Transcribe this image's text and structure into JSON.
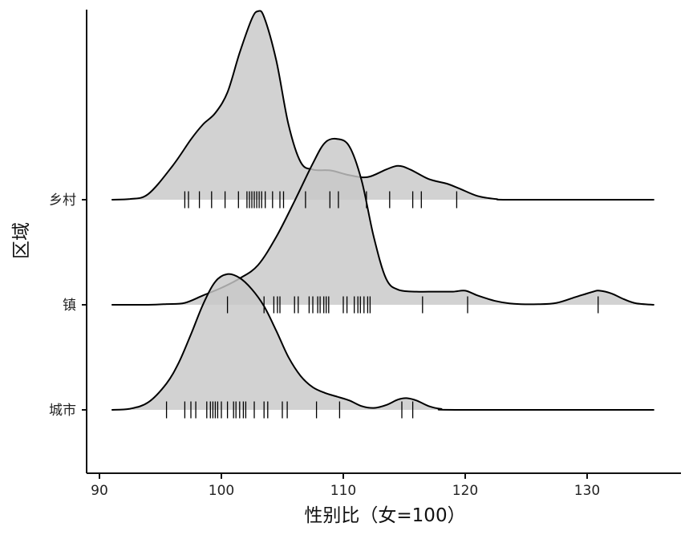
{
  "chart_data": {
    "type": "ridgeline",
    "xlabel": "性别比（女=100）",
    "ylabel": "区域",
    "xlim": [
      89,
      137
    ],
    "xticks": [
      90,
      100,
      110,
      120,
      130
    ],
    "grid": false,
    "legend": "none",
    "fill_color": "#c8c8c8",
    "line_color": "#000000",
    "categories": [
      "乡村",
      "镇",
      "城市"
    ],
    "series": [
      {
        "name": "乡村",
        "density": [
          [
            91,
            0.0
          ],
          [
            92.5,
            0.004
          ],
          [
            94,
            0.03
          ],
          [
            96,
            0.18
          ],
          [
            97.5,
            0.32
          ],
          [
            98.5,
            0.4
          ],
          [
            99.5,
            0.46
          ],
          [
            100.5,
            0.57
          ],
          [
            101.5,
            0.78
          ],
          [
            102.5,
            0.96
          ],
          [
            103,
            1.0
          ],
          [
            103.5,
            0.97
          ],
          [
            104.5,
            0.74
          ],
          [
            105.5,
            0.4
          ],
          [
            106.5,
            0.2
          ],
          [
            107.5,
            0.16
          ],
          [
            109,
            0.155
          ],
          [
            110.5,
            0.13
          ],
          [
            112,
            0.12
          ],
          [
            113.5,
            0.16
          ],
          [
            114.5,
            0.18
          ],
          [
            115.5,
            0.16
          ],
          [
            117,
            0.11
          ],
          [
            118.5,
            0.085
          ],
          [
            119.5,
            0.06
          ],
          [
            121,
            0.02
          ],
          [
            122.5,
            0.004
          ],
          [
            124,
            0.0
          ],
          [
            135.5,
            0.0
          ]
        ],
        "rug": [
          97.0,
          97.3,
          98.2,
          99.2,
          100.3,
          101.4,
          102.1,
          102.3,
          102.5,
          102.7,
          102.9,
          103.1,
          103.3,
          103.6,
          104.2,
          104.8,
          105.1,
          106.9,
          108.9,
          109.6,
          111.9,
          113.8,
          115.7,
          116.4,
          119.3
        ]
      },
      {
        "name": "镇",
        "density": [
          [
            91,
            0.0
          ],
          [
            94,
            0.0
          ],
          [
            95.5,
            0.004
          ],
          [
            97,
            0.01
          ],
          [
            98.5,
            0.05
          ],
          [
            100,
            0.09
          ],
          [
            101.5,
            0.14
          ],
          [
            103,
            0.21
          ],
          [
            104.5,
            0.36
          ],
          [
            106,
            0.55
          ],
          [
            107.5,
            0.75
          ],
          [
            108.5,
            0.86
          ],
          [
            109.5,
            0.88
          ],
          [
            110.5,
            0.84
          ],
          [
            111.5,
            0.66
          ],
          [
            112.5,
            0.36
          ],
          [
            113.5,
            0.14
          ],
          [
            114.5,
            0.08
          ],
          [
            116,
            0.07
          ],
          [
            117.5,
            0.07
          ],
          [
            119,
            0.07
          ],
          [
            120,
            0.075
          ],
          [
            121,
            0.05
          ],
          [
            122.5,
            0.02
          ],
          [
            124,
            0.005
          ],
          [
            126,
            0.003
          ],
          [
            127.5,
            0.01
          ],
          [
            129,
            0.04
          ],
          [
            130.5,
            0.07
          ],
          [
            131,
            0.075
          ],
          [
            132,
            0.06
          ],
          [
            133,
            0.03
          ],
          [
            134,
            0.008
          ],
          [
            135.5,
            0.0
          ]
        ],
        "rug": [
          100.5,
          103.5,
          104.3,
          104.6,
          104.8,
          106.0,
          106.3,
          107.2,
          107.5,
          107.9,
          108.1,
          108.4,
          108.6,
          108.8,
          110.0,
          110.3,
          110.9,
          111.2,
          111.4,
          111.7,
          112.0,
          112.2,
          116.5,
          120.2,
          130.9
        ]
      },
      {
        "name": "城市",
        "density": [
          [
            91,
            0.0
          ],
          [
            92.5,
            0.006
          ],
          [
            94,
            0.04
          ],
          [
            95.5,
            0.14
          ],
          [
            96.5,
            0.25
          ],
          [
            97.5,
            0.4
          ],
          [
            98.5,
            0.56
          ],
          [
            99.5,
            0.68
          ],
          [
            100.5,
            0.72
          ],
          [
            101.5,
            0.7
          ],
          [
            102.5,
            0.64
          ],
          [
            103.5,
            0.55
          ],
          [
            104.5,
            0.42
          ],
          [
            105.5,
            0.28
          ],
          [
            106.5,
            0.18
          ],
          [
            107.5,
            0.12
          ],
          [
            108.5,
            0.09
          ],
          [
            109.5,
            0.07
          ],
          [
            110.5,
            0.05
          ],
          [
            111.5,
            0.02
          ],
          [
            112.5,
            0.01
          ],
          [
            113.5,
            0.025
          ],
          [
            114.5,
            0.055
          ],
          [
            115.2,
            0.062
          ],
          [
            116,
            0.05
          ],
          [
            117,
            0.02
          ],
          [
            118,
            0.005
          ],
          [
            119.5,
            0.0
          ],
          [
            135.5,
            0.0
          ]
        ],
        "rug": [
          95.5,
          97.0,
          97.5,
          97.9,
          98.8,
          99.1,
          99.3,
          99.5,
          99.7,
          100.0,
          100.5,
          101.0,
          101.2,
          101.5,
          101.8,
          102.0,
          102.7,
          103.5,
          103.8,
          105.0,
          105.4,
          107.8,
          109.7,
          114.8,
          115.7
        ]
      }
    ]
  }
}
